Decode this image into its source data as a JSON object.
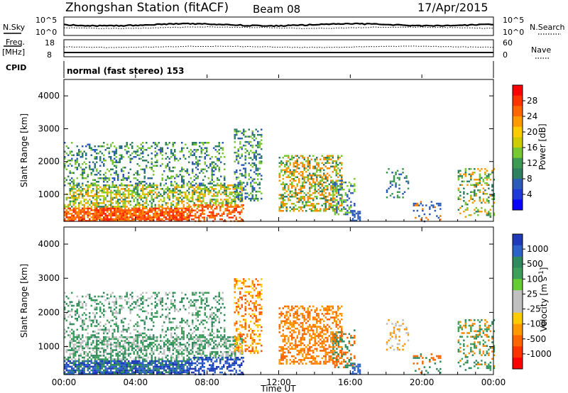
{
  "header": {
    "title": "Zhongshan Station (fitACF)",
    "beam": "Beam 08",
    "date": "17/Apr/2015"
  },
  "top_panels": {
    "nsky_label": "N.Sky",
    "nsearch_label": "N.Search",
    "nsky_ticks": [
      "10^5",
      "10^0"
    ],
    "nsearch_ticks": [
      "10^5",
      "10^0"
    ],
    "freq_label_1": "Freq.",
    "freq_label_2": "[MHz]",
    "freq_ticks": [
      "18",
      "8"
    ],
    "nave_label": "Nave",
    "nave_ticks": [
      "60",
      "0"
    ],
    "cpid_label": "CPID",
    "cpid_text": "normal (fast stereo) 153"
  },
  "chart_data": [
    {
      "type": "heatmap",
      "title": "",
      "ylabel": "Slant Range [km]",
      "xlabel": "",
      "ylim": [
        180,
        4500
      ],
      "yticks": [
        1000,
        2000,
        3000,
        4000
      ],
      "xlim_hours": [
        0,
        24
      ],
      "colorbar": {
        "label": "Power [dB]",
        "ticks": [
          "28",
          "24",
          "20",
          "16",
          "12",
          "8",
          "4"
        ],
        "colors": [
          "#ff0000",
          "#ff3300",
          "#ff6600",
          "#ff9900",
          "#ffcc00",
          "#cccc00",
          "#77c832",
          "#3c9a52",
          "#2f8060",
          "#2d5cb8",
          "#1f3ad8",
          "#0a00ff"
        ]
      }
    },
    {
      "type": "heatmap",
      "title": "",
      "ylabel": "Slant Range [km]",
      "xlabel": "Time UT",
      "ylim": [
        180,
        4500
      ],
      "yticks": [
        1000,
        2000,
        3000,
        4000
      ],
      "xticks": [
        "00:00",
        "04:00",
        "08:00",
        "12:00",
        "16:00",
        "20:00",
        "00:00"
      ],
      "colorbar": {
        "label": "Velocity [m s^-1]",
        "ticks": [
          "1000",
          "500",
          "100",
          "25",
          "-25",
          "-100",
          "-500",
          "-1000"
        ],
        "colors": [
          "#1f3ab8",
          "#2d62c8",
          "#2f8a5e",
          "#3ca05a",
          "#66cc33",
          "#c0c0c0",
          "#c0c0c0",
          "#ffcc00",
          "#ff9900",
          "#ff6600",
          "#ff3300",
          "#ff0000"
        ]
      }
    }
  ]
}
